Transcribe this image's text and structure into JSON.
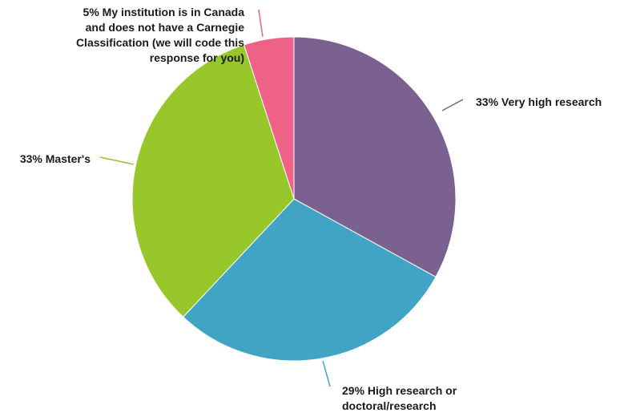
{
  "chart_data": {
    "type": "pie",
    "title": "",
    "legend": "none",
    "start_angle_deg": 0,
    "direction": "clockwise",
    "slices": [
      {
        "label": "Very high research",
        "value": 33,
        "color": "#7b6190",
        "display": [
          "33% Very high research"
        ]
      },
      {
        "label": "High research or doctoral/research",
        "value": 29,
        "color": "#41a4c4",
        "display": [
          "29% High research or",
          "doctoral/research"
        ]
      },
      {
        "label": "Master's",
        "value": 33,
        "color": "#97c72a",
        "display": [
          "33% Master's"
        ]
      },
      {
        "label": "My institution is in Canada and does not have a Carnegie Classification (we will code this response for you)",
        "value": 5,
        "color": "#ee6287",
        "display": [
          "5% My institution is in Canada",
          "and does not have a Carnegie",
          "Classification (we will code this",
          "response for you)"
        ]
      }
    ]
  }
}
